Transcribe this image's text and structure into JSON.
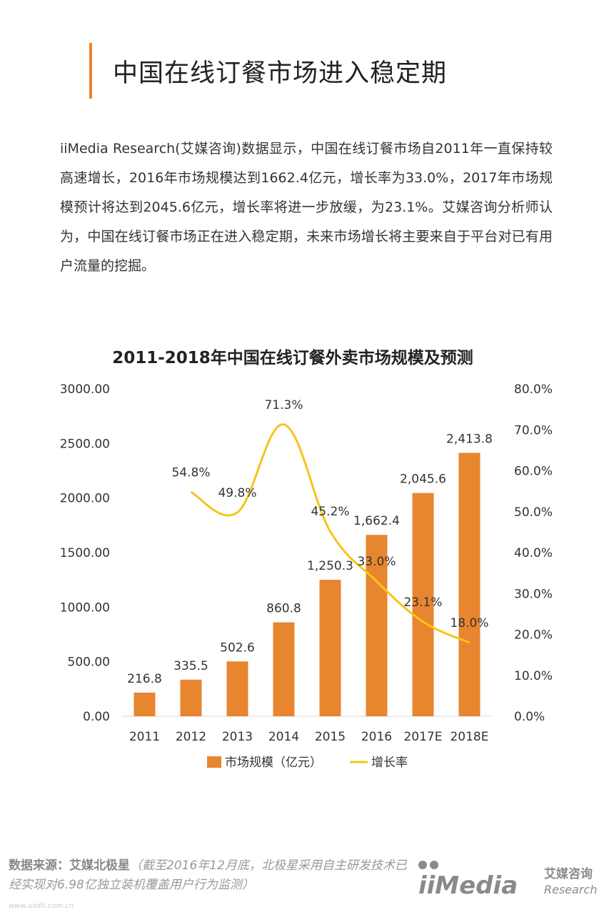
{
  "page": {
    "title": "中国在线订餐市场进入稳定期",
    "intro": "iiMedia Research(艾媒咨询)数据显示，中国在线订餐市场自2011年一直保持较高速增长，2016年市场规模达到1662.4亿元，增长率为33.0%，2017年市场规模预计将达到2045.6亿元，增长率将进一步放缓，为23.1%。艾媒咨询分析师认为，中国在线订餐市场正在进入稳定期，未来市场增长将主要来自于平台对已有用户流量的挖掘。"
  },
  "footer": {
    "source_label": "数据来源：艾媒北极星",
    "source_note": "（截至2016年12月底，北极星采用自主研发技术已经实现对6.98亿独立装机覆盖用户行为监测）",
    "url": "www.usdit.com.cn"
  },
  "brand": {
    "logo_text": "iiMedia",
    "cn_name": "艾媒咨询",
    "en_name": "Research",
    "logo_color": "#8a8a8a"
  },
  "chart_data": {
    "type": "bar",
    "title": "2011-2018年中国在线订餐外卖市场规模及预测",
    "categories": [
      "2011",
      "2012",
      "2013",
      "2014",
      "2015",
      "2016",
      "2017E",
      "2018E"
    ],
    "series": [
      {
        "name": "市场规模（亿元）",
        "type": "bar",
        "axis": "left",
        "color": "#e8852f",
        "values": [
          216.8,
          335.5,
          502.6,
          860.8,
          1250.3,
          1662.4,
          2045.6,
          2413.8
        ],
        "labels": [
          "216.8",
          "335.5",
          "502.6",
          "860.8",
          "1,250.3",
          "1,662.4",
          "2,045.6",
          "2,413.8"
        ]
      },
      {
        "name": "增长率",
        "type": "line",
        "axis": "right",
        "color": "#f5c518",
        "values": [
          null,
          54.8,
          49.8,
          71.3,
          45.2,
          33.0,
          23.1,
          18.0
        ],
        "labels": [
          "",
          "54.8%",
          "49.8%",
          "71.3%",
          "45.2%",
          "33.0%",
          "23.1%",
          "18.0%"
        ]
      }
    ],
    "y_left": {
      "min": 0,
      "max": 3000,
      "ticks": [
        "0.00",
        "500.00",
        "1000.00",
        "1500.00",
        "2000.00",
        "2500.00",
        "3000.00"
      ]
    },
    "y_right": {
      "min": 0,
      "max": 80,
      "ticks": [
        "0.0%",
        "10.0%",
        "20.0%",
        "30.0%",
        "40.0%",
        "50.0%",
        "60.0%",
        "70.0%",
        "80.0%"
      ]
    },
    "grid": false,
    "legend": "bottom"
  }
}
